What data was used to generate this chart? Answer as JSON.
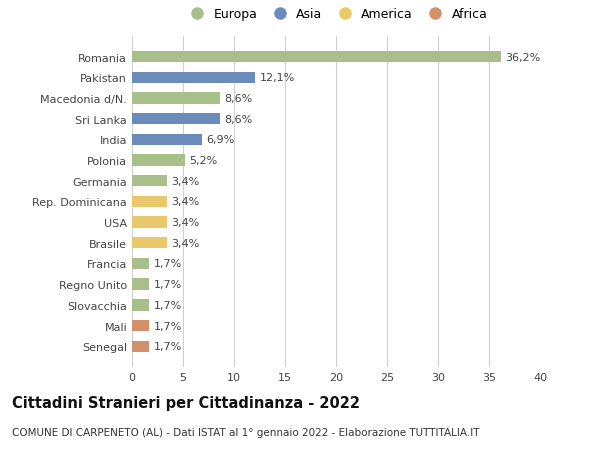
{
  "categories": [
    "Romania",
    "Pakistan",
    "Macedonia d/N.",
    "Sri Lanka",
    "India",
    "Polonia",
    "Germania",
    "Rep. Dominicana",
    "USA",
    "Brasile",
    "Francia",
    "Regno Unito",
    "Slovacchia",
    "Mali",
    "Senegal"
  ],
  "values": [
    36.2,
    12.1,
    8.6,
    8.6,
    6.9,
    5.2,
    3.4,
    3.4,
    3.4,
    3.4,
    1.7,
    1.7,
    1.7,
    1.7,
    1.7
  ],
  "labels": [
    "36,2%",
    "12,1%",
    "8,6%",
    "8,6%",
    "6,9%",
    "5,2%",
    "3,4%",
    "3,4%",
    "3,4%",
    "3,4%",
    "1,7%",
    "1,7%",
    "1,7%",
    "1,7%",
    "1,7%"
  ],
  "continents": [
    "Europa",
    "Asia",
    "Europa",
    "Asia",
    "Asia",
    "Europa",
    "Europa",
    "America",
    "America",
    "America",
    "Europa",
    "Europa",
    "Europa",
    "Africa",
    "Africa"
  ],
  "colors": {
    "Europa": "#a8bf8a",
    "Asia": "#6b8cba",
    "America": "#e8c86a",
    "Africa": "#d4906a"
  },
  "legend_order": [
    "Europa",
    "Asia",
    "America",
    "Africa"
  ],
  "title": "Cittadini Stranieri per Cittadinanza - 2022",
  "subtitle": "COMUNE DI CARPENETO (AL) - Dati ISTAT al 1° gennaio 2022 - Elaborazione TUTTITALIA.IT",
  "xlim": [
    0,
    40
  ],
  "xticks": [
    0,
    5,
    10,
    15,
    20,
    25,
    30,
    35,
    40
  ],
  "bg_color": "#ffffff",
  "grid_color": "#d0d0d0",
  "bar_height": 0.55,
  "label_fontsize": 8.0,
  "tick_fontsize": 8.0,
  "title_fontsize": 10.5,
  "subtitle_fontsize": 7.5
}
